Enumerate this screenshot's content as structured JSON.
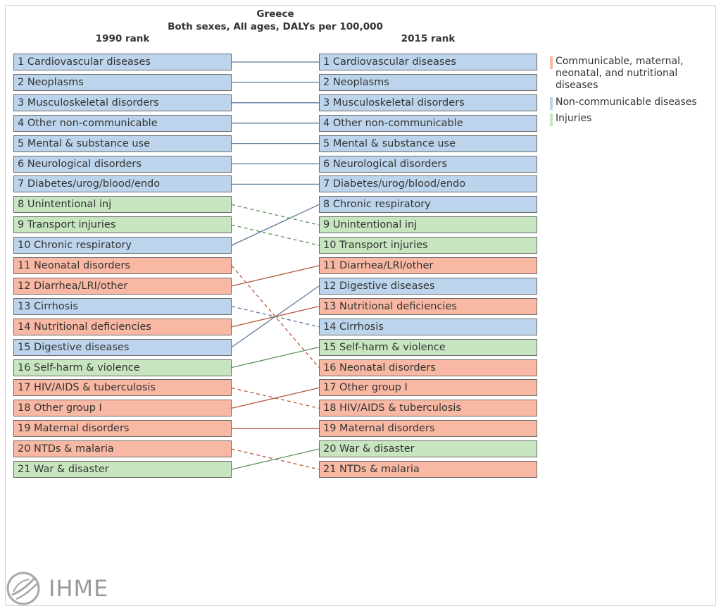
{
  "chart_data": {
    "type": "rank-change",
    "title": "Greece",
    "subtitle": "Both sexes, All ages, DALYs per 100,000",
    "left_header": "1990 rank",
    "right_header": "2015 rank",
    "colors": {
      "communicable": "#f9b8a3",
      "non_communicable": "#bdd5ec",
      "injuries": "#c7e6c0"
    },
    "link_colors": {
      "communicable": "#b5573a",
      "non_communicable": "#5b7a99",
      "injuries": "#5f8f5a"
    },
    "left": [
      {
        "label": "1 Cardiovascular diseases",
        "cause": "Cardiovascular diseases",
        "group": "non_communicable"
      },
      {
        "label": "2 Neoplasms",
        "cause": "Neoplasms",
        "group": "non_communicable"
      },
      {
        "label": "3 Musculoskeletal disorders",
        "cause": "Musculoskeletal disorders",
        "group": "non_communicable"
      },
      {
        "label": "4 Other non-communicable",
        "cause": "Other non-communicable",
        "group": "non_communicable"
      },
      {
        "label": "5 Mental & substance use",
        "cause": "Mental & substance use",
        "group": "non_communicable"
      },
      {
        "label": "6 Neurological disorders",
        "cause": "Neurological disorders",
        "group": "non_communicable"
      },
      {
        "label": "7 Diabetes/urog/blood/endo",
        "cause": "Diabetes/urog/blood/endo",
        "group": "non_communicable"
      },
      {
        "label": "8 Unintentional inj",
        "cause": "Unintentional inj",
        "group": "injuries"
      },
      {
        "label": "9 Transport injuries",
        "cause": "Transport injuries",
        "group": "injuries"
      },
      {
        "label": "10 Chronic respiratory",
        "cause": "Chronic respiratory",
        "group": "non_communicable"
      },
      {
        "label": "11 Neonatal disorders",
        "cause": "Neonatal disorders",
        "group": "communicable"
      },
      {
        "label": "12 Diarrhea/LRI/other",
        "cause": "Diarrhea/LRI/other",
        "group": "communicable"
      },
      {
        "label": "13 Cirrhosis",
        "cause": "Cirrhosis",
        "group": "non_communicable"
      },
      {
        "label": "14 Nutritional deficiencies",
        "cause": "Nutritional deficiencies",
        "group": "communicable"
      },
      {
        "label": "15 Digestive diseases",
        "cause": "Digestive diseases",
        "group": "non_communicable"
      },
      {
        "label": "16 Self-harm & violence",
        "cause": "Self-harm & violence",
        "group": "injuries"
      },
      {
        "label": "17 HIV/AIDS & tuberculosis",
        "cause": "HIV/AIDS & tuberculosis",
        "group": "communicable"
      },
      {
        "label": "18 Other group I",
        "cause": "Other group I",
        "group": "communicable"
      },
      {
        "label": "19 Maternal disorders",
        "cause": "Maternal disorders",
        "group": "communicable"
      },
      {
        "label": "20 NTDs & malaria",
        "cause": "NTDs & malaria",
        "group": "communicable"
      },
      {
        "label": "21 War & disaster",
        "cause": "War & disaster",
        "group": "injuries"
      }
    ],
    "right": [
      {
        "label": "1 Cardiovascular diseases",
        "cause": "Cardiovascular diseases",
        "group": "non_communicable"
      },
      {
        "label": "2 Neoplasms",
        "cause": "Neoplasms",
        "group": "non_communicable"
      },
      {
        "label": "3 Musculoskeletal disorders",
        "cause": "Musculoskeletal disorders",
        "group": "non_communicable"
      },
      {
        "label": "4 Other non-communicable",
        "cause": "Other non-communicable",
        "group": "non_communicable"
      },
      {
        "label": "5 Mental & substance use",
        "cause": "Mental & substance use",
        "group": "non_communicable"
      },
      {
        "label": "6 Neurological disorders",
        "cause": "Neurological disorders",
        "group": "non_communicable"
      },
      {
        "label": "7 Diabetes/urog/blood/endo",
        "cause": "Diabetes/urog/blood/endo",
        "group": "non_communicable"
      },
      {
        "label": "8 Chronic respiratory",
        "cause": "Chronic respiratory",
        "group": "non_communicable"
      },
      {
        "label": "9 Unintentional inj",
        "cause": "Unintentional inj",
        "group": "injuries"
      },
      {
        "label": "10 Transport injuries",
        "cause": "Transport injuries",
        "group": "injuries"
      },
      {
        "label": "11 Diarrhea/LRI/other",
        "cause": "Diarrhea/LRI/other",
        "group": "communicable"
      },
      {
        "label": "12 Digestive diseases",
        "cause": "Digestive diseases",
        "group": "non_communicable"
      },
      {
        "label": "13 Nutritional deficiencies",
        "cause": "Nutritional deficiencies",
        "group": "communicable"
      },
      {
        "label": "14 Cirrhosis",
        "cause": "Cirrhosis",
        "group": "non_communicable"
      },
      {
        "label": "15 Self-harm & violence",
        "cause": "Self-harm & violence",
        "group": "injuries"
      },
      {
        "label": "16 Neonatal disorders",
        "cause": "Neonatal disorders",
        "group": "communicable"
      },
      {
        "label": "17 Other group I",
        "cause": "Other group I",
        "group": "communicable"
      },
      {
        "label": "18 HIV/AIDS & tuberculosis",
        "cause": "HIV/AIDS & tuberculosis",
        "group": "communicable"
      },
      {
        "label": "19 Maternal disorders",
        "cause": "Maternal disorders",
        "group": "communicable"
      },
      {
        "label": "20 War & disaster",
        "cause": "War & disaster",
        "group": "injuries"
      },
      {
        "label": "21 NTDs & malaria",
        "cause": "NTDs & malaria",
        "group": "communicable"
      }
    ],
    "legend": [
      {
        "label": "Communicable, maternal, neonatal, and nutritional diseases",
        "group": "communicable"
      },
      {
        "label": "Non-communicable diseases",
        "group": "non_communicable"
      },
      {
        "label": "Injuries",
        "group": "injuries"
      }
    ]
  },
  "logo": {
    "text": "IHME"
  }
}
